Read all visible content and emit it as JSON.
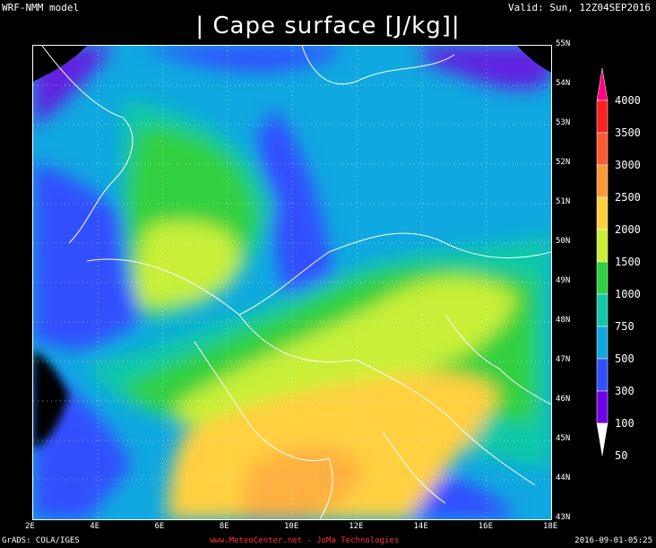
{
  "header": {
    "model": "WRF-NMM model",
    "valid": "Valid: Sun, 12Z04SEP2016",
    "title": "| Cape surface [J/kg]|"
  },
  "axes": {
    "lon_labels": [
      "2E",
      "4E",
      "6E",
      "8E",
      "10E",
      "12E",
      "14E",
      "16E",
      "18E"
    ],
    "lat_labels": [
      "55N",
      "54N",
      "53N",
      "52N",
      "51N",
      "50N",
      "49N",
      "48N",
      "47N",
      "46N",
      "45N",
      "44N",
      "43N"
    ]
  },
  "legend": {
    "levels": [
      "4000",
      "3500",
      "3000",
      "2500",
      "2000",
      "1500",
      "1000",
      "750",
      "500",
      "300",
      "100",
      "50"
    ],
    "colors": [
      "#ff0080",
      "#ff2020",
      "#ff5a30",
      "#ff9838",
      "#ffd040",
      "#c8f038",
      "#30d040",
      "#10c8a8",
      "#10a8e0",
      "#3050ff",
      "#7000e8",
      "#ffffff"
    ]
  },
  "footer": {
    "left": "GrADS: COLA/IGES",
    "center": "www.MeteoCenter.net  -  JoMa Technologies",
    "right": "2016-09-01-05:25"
  }
}
